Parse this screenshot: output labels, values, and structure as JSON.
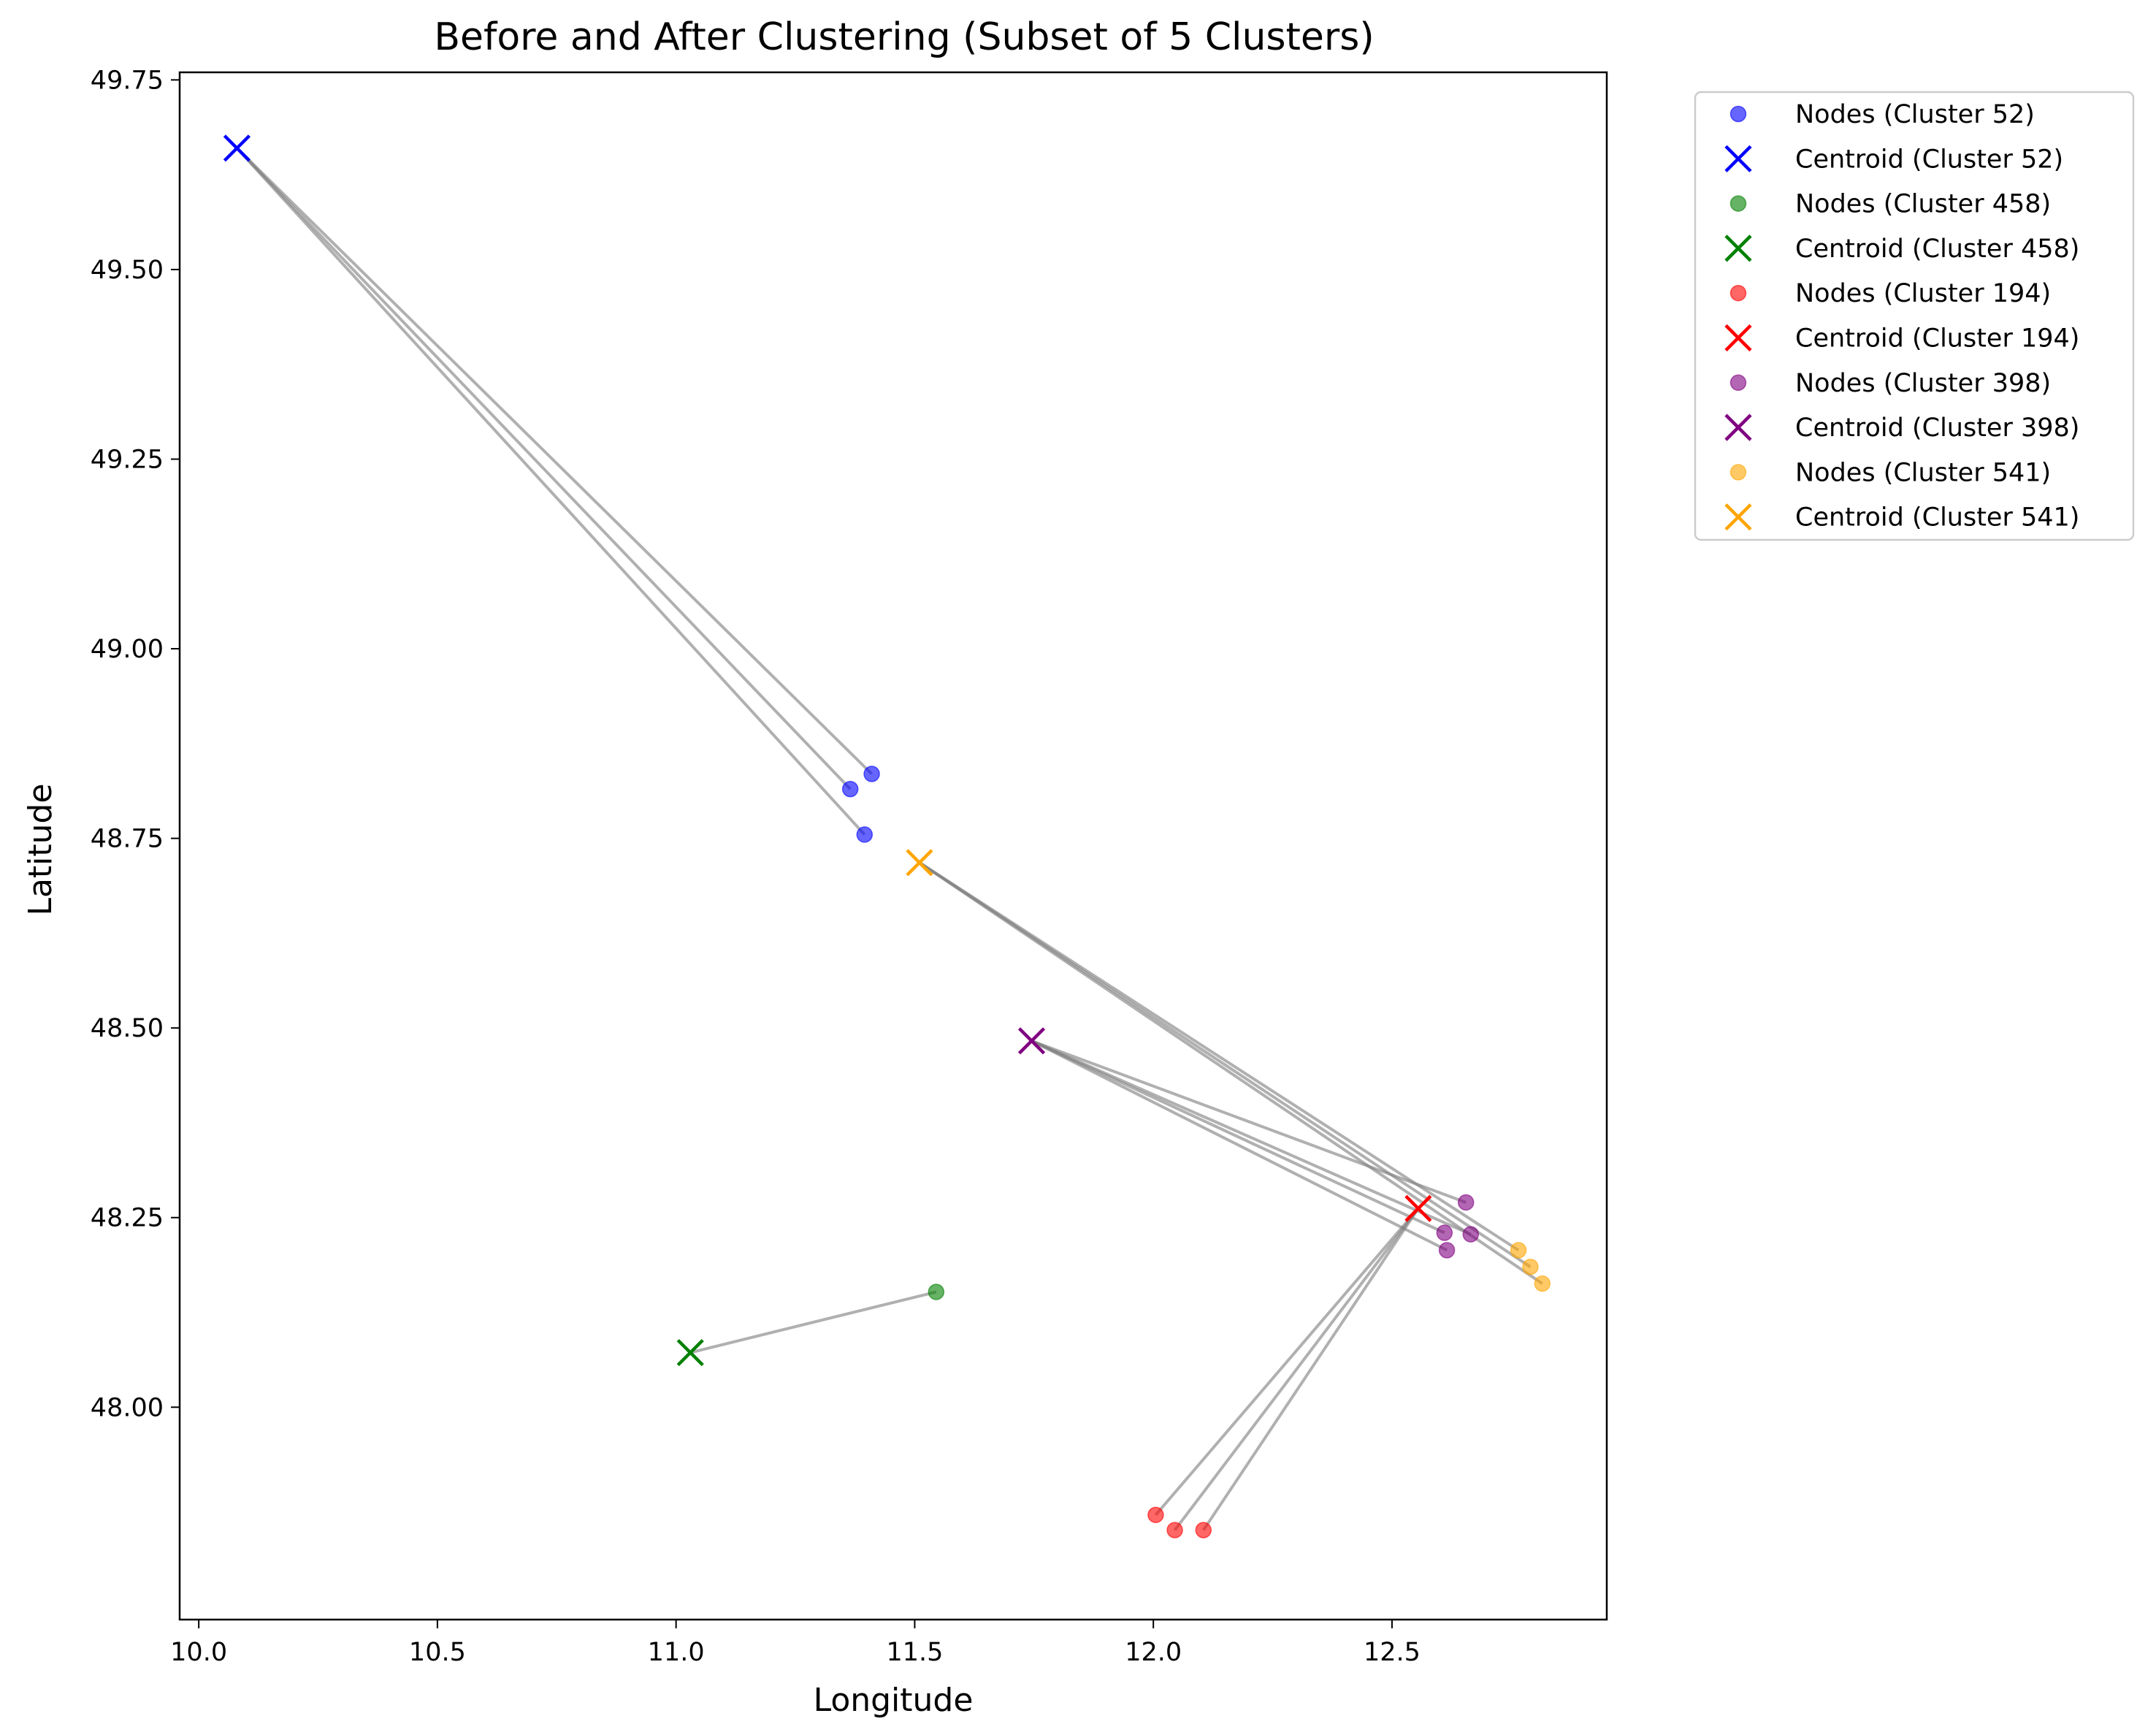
{
  "chart_data": {
    "type": "scatter",
    "title": "Before and After Clustering (Subset of 5 Clusters)",
    "xlabel": "Longitude",
    "ylabel": "Latitude",
    "xlim": [
      9.96,
      12.95
    ],
    "ylim": [
      47.72,
      49.76
    ],
    "xticks": [
      10.0,
      10.5,
      11.0,
      11.5,
      12.0,
      12.5
    ],
    "xtick_labels": [
      "10.0",
      "10.5",
      "11.0",
      "11.5",
      "12.0",
      "12.5"
    ],
    "yticks": [
      48.0,
      48.25,
      48.5,
      48.75,
      49.0,
      49.25,
      49.5,
      49.75
    ],
    "ytick_labels": [
      "48.00",
      "48.25",
      "48.50",
      "48.75",
      "49.00",
      "49.25",
      "49.50",
      "49.75"
    ],
    "grid": false,
    "legend_position": "outside top-right",
    "connector_color": "#808080",
    "clusters": [
      {
        "id": 52,
        "color": "#0000ff",
        "nodes_label": "Nodes (Cluster 52)",
        "centroid_label": "Centroid (Cluster 52)",
        "centroid": [
          10.08,
          49.66
        ],
        "nodes": [
          [
            11.41,
            48.835
          ],
          [
            11.365,
            48.815
          ],
          [
            11.395,
            48.755
          ]
        ]
      },
      {
        "id": 458,
        "color": "#008000",
        "nodes_label": "Nodes (Cluster 458)",
        "centroid_label": "Centroid (Cluster 458)",
        "centroid": [
          11.03,
          48.072
        ],
        "nodes": [
          [
            11.545,
            48.152
          ]
        ]
      },
      {
        "id": 194,
        "color": "#ff0000",
        "nodes_label": "Nodes (Cluster 194)",
        "centroid_label": "Centroid (Cluster 194)",
        "centroid": [
          12.555,
          48.262
        ],
        "nodes": [
          [
            12.005,
            47.858
          ],
          [
            12.045,
            47.838
          ],
          [
            12.105,
            47.838
          ]
        ]
      },
      {
        "id": 398,
        "color": "#800080",
        "nodes_label": "Nodes (Cluster 398)",
        "centroid_label": "Centroid (Cluster 398)",
        "centroid": [
          11.745,
          48.483
        ],
        "nodes": [
          [
            12.655,
            48.27
          ],
          [
            12.61,
            48.23
          ],
          [
            12.665,
            48.228
          ],
          [
            12.615,
            48.207
          ]
        ]
      },
      {
        "id": 541,
        "color": "#ffa500",
        "nodes_label": "Nodes (Cluster 541)",
        "centroid_label": "Centroid (Cluster 541)",
        "centroid": [
          11.51,
          48.718
        ],
        "nodes": [
          [
            12.765,
            48.207
          ],
          [
            12.79,
            48.185
          ],
          [
            12.815,
            48.163
          ]
        ]
      }
    ]
  }
}
